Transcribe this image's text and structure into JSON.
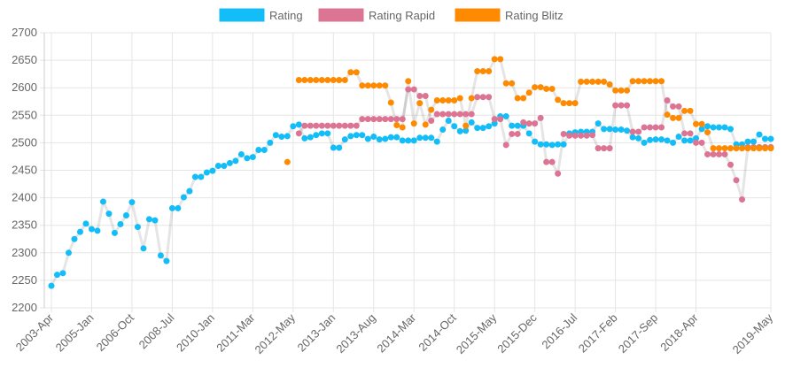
{
  "chart_data": {
    "type": "line",
    "categories": [
      "2003-Apr",
      null,
      null,
      null,
      null,
      null,
      null,
      "2005-Jan",
      null,
      null,
      null,
      null,
      null,
      null,
      "2006-Oct",
      null,
      null,
      null,
      null,
      null,
      null,
      "2008-Jul",
      null,
      null,
      null,
      null,
      null,
      null,
      "2010-Jan",
      null,
      null,
      null,
      null,
      null,
      null,
      "2011-Mar",
      null,
      null,
      null,
      null,
      null,
      null,
      "2012-May",
      null,
      null,
      null,
      null,
      null,
      null,
      "2013-Jan",
      null,
      null,
      null,
      null,
      null,
      null,
      "2013-Aug",
      null,
      null,
      null,
      null,
      null,
      null,
      "2014-Mar",
      null,
      null,
      null,
      null,
      null,
      null,
      "2014-Oct",
      null,
      null,
      null,
      null,
      null,
      null,
      "2015-May",
      null,
      null,
      null,
      null,
      null,
      null,
      "2015-Dec",
      null,
      null,
      null,
      null,
      null,
      null,
      "2016-Jul",
      null,
      null,
      null,
      null,
      null,
      null,
      "2017-Feb",
      null,
      null,
      null,
      null,
      null,
      null,
      "2017-Sep",
      null,
      null,
      null,
      null,
      null,
      null,
      "2018-Apr",
      null,
      null,
      null,
      null,
      null,
      null,
      null,
      null,
      null,
      null,
      null,
      null,
      "2019-May"
    ],
    "series": [
      {
        "name": "Rating",
        "color": "#13bdf7",
        "values": [
          2240,
          2260,
          2263,
          2300,
          2325,
          2338,
          2353,
          2343,
          2340,
          2393,
          2371,
          2336,
          2352,
          2368,
          2392,
          2347,
          2308,
          2361,
          2359,
          2295,
          2285,
          2381,
          2381,
          2401,
          2412,
          2438,
          2438,
          2446,
          2449,
          2458,
          2458,
          2463,
          2467,
          2479,
          2472,
          2474,
          2487,
          2487,
          2500,
          2514,
          2511,
          2512,
          2530,
          2533,
          2508,
          2510,
          2514,
          2517,
          2517,
          2491,
          2491,
          2506,
          2512,
          2514,
          2514,
          2507,
          2511,
          2506,
          2507,
          2510,
          2510,
          2504,
          2504,
          2504,
          2509,
          2509,
          2509,
          2502,
          2524,
          2540,
          2530,
          2521,
          2522,
          2537,
          2527,
          2527,
          2530,
          2535,
          2548,
          2548,
          2531,
          2531,
          2531,
          2517,
          2502,
          2497,
          2497,
          2496,
          2497,
          2497,
          2517,
          2519,
          2520,
          2520,
          2520,
          2535,
          2525,
          2525,
          2524,
          2524,
          2522,
          2510,
          2508,
          2500,
          2505,
          2506,
          2506,
          2504,
          2500,
          2511,
          2504,
          2504,
          2508,
          2525,
          2530,
          2528,
          2528,
          2528,
          2525,
          2497,
          2497,
          2502,
          2502,
          2515,
          2507,
          2507
        ]
      },
      {
        "name": "Rating Rapid",
        "color": "#dc7494",
        "values": [
          null,
          null,
          null,
          null,
          null,
          null,
          null,
          null,
          null,
          null,
          null,
          null,
          null,
          null,
          null,
          null,
          null,
          null,
          null,
          null,
          null,
          null,
          null,
          null,
          null,
          null,
          null,
          null,
          null,
          null,
          null,
          null,
          null,
          null,
          null,
          null,
          null,
          null,
          null,
          null,
          null,
          null,
          null,
          2517,
          2531,
          2531,
          2531,
          2531,
          2531,
          2531,
          2531,
          2531,
          2531,
          2531,
          2543,
          2543,
          2543,
          2543,
          2543,
          2543,
          2543,
          2543,
          2597,
          2597,
          2585,
          2585,
          2540,
          2552,
          2552,
          2552,
          2552,
          2552,
          2552,
          2552,
          2583,
          2583,
          2583,
          2543,
          2543,
          2496,
          2516,
          2516,
          2537,
          2535,
          2535,
          2545,
          2465,
          2465,
          2444,
          2516,
          2513,
          2513,
          2513,
          2513,
          2514,
          2490,
          2490,
          2490,
          2568,
          2568,
          2568,
          2520,
          2520,
          2528,
          2528,
          2528,
          2528,
          2577,
          2566,
          2566,
          2517,
          2517,
          2500,
          2500,
          2479,
          2479,
          2479,
          2479,
          2460,
          2432,
          2397,
          2492,
          2492,
          2492,
          2492,
          2492
        ]
      },
      {
        "name": "Rating Blitz",
        "color": "#fd8a00",
        "values": [
          null,
          null,
          null,
          null,
          null,
          null,
          null,
          null,
          null,
          null,
          null,
          null,
          null,
          null,
          null,
          null,
          null,
          null,
          null,
          null,
          null,
          null,
          null,
          null,
          null,
          null,
          null,
          null,
          null,
          null,
          null,
          null,
          null,
          null,
          null,
          null,
          null,
          null,
          null,
          null,
          null,
          2465,
          null,
          2614,
          2614,
          2614,
          2614,
          2614,
          2614,
          2614,
          2614,
          2614,
          2628,
          2628,
          2604,
          2604,
          2604,
          2604,
          2604,
          2573,
          2532,
          2528,
          2612,
          2535,
          2572,
          2533,
          2560,
          2577,
          2577,
          2577,
          2577,
          2581,
          2531,
          2581,
          2630,
          2630,
          2630,
          2652,
          2652,
          2608,
          2608,
          2581,
          2581,
          2591,
          2601,
          2601,
          2598,
          2598,
          2578,
          2572,
          2572,
          2572,
          2611,
          2611,
          2611,
          2611,
          2611,
          2606,
          2595,
          2595,
          2595,
          2612,
          2612,
          2612,
          2612,
          2612,
          2612,
          2551,
          2545,
          2545,
          2558,
          2558,
          2534,
          2534,
          2519,
          2490,
          2490,
          2490,
          2490,
          2490,
          2490,
          2490,
          2490,
          2490,
          2490,
          2490
        ]
      }
    ],
    "ylim": [
      2200,
      2700
    ],
    "yticks": [
      2200,
      2250,
      2300,
      2350,
      2400,
      2450,
      2500,
      2550,
      2600,
      2650,
      2700
    ],
    "grid": true,
    "legend": "top"
  }
}
